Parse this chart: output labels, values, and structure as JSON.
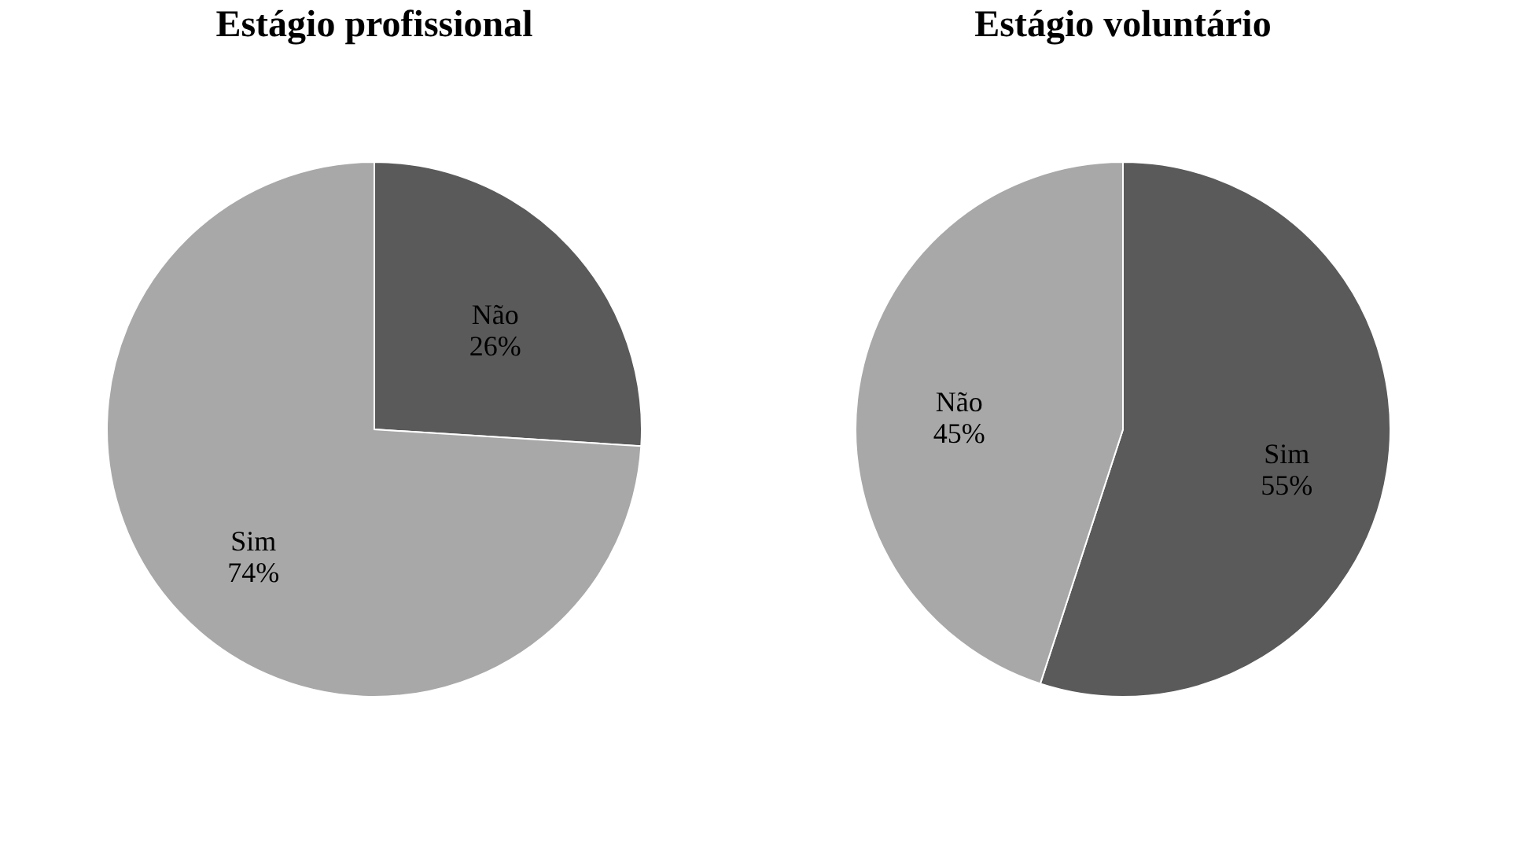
{
  "chart_data": [
    {
      "type": "pie",
      "title": "Estágio profissional",
      "categories": [
        "Não",
        "Sim"
      ],
      "values": [
        26,
        74
      ],
      "colors": [
        "#5a5a5a",
        "#a8a8a8"
      ],
      "value_labels": [
        "26%",
        "74%"
      ]
    },
    {
      "type": "pie",
      "title": "Estágio voluntário",
      "categories": [
        "Sim",
        "Não"
      ],
      "values": [
        55,
        45
      ],
      "colors": [
        "#5a5a5a",
        "#a8a8a8"
      ],
      "value_labels": [
        "55%",
        "45%"
      ]
    }
  ]
}
